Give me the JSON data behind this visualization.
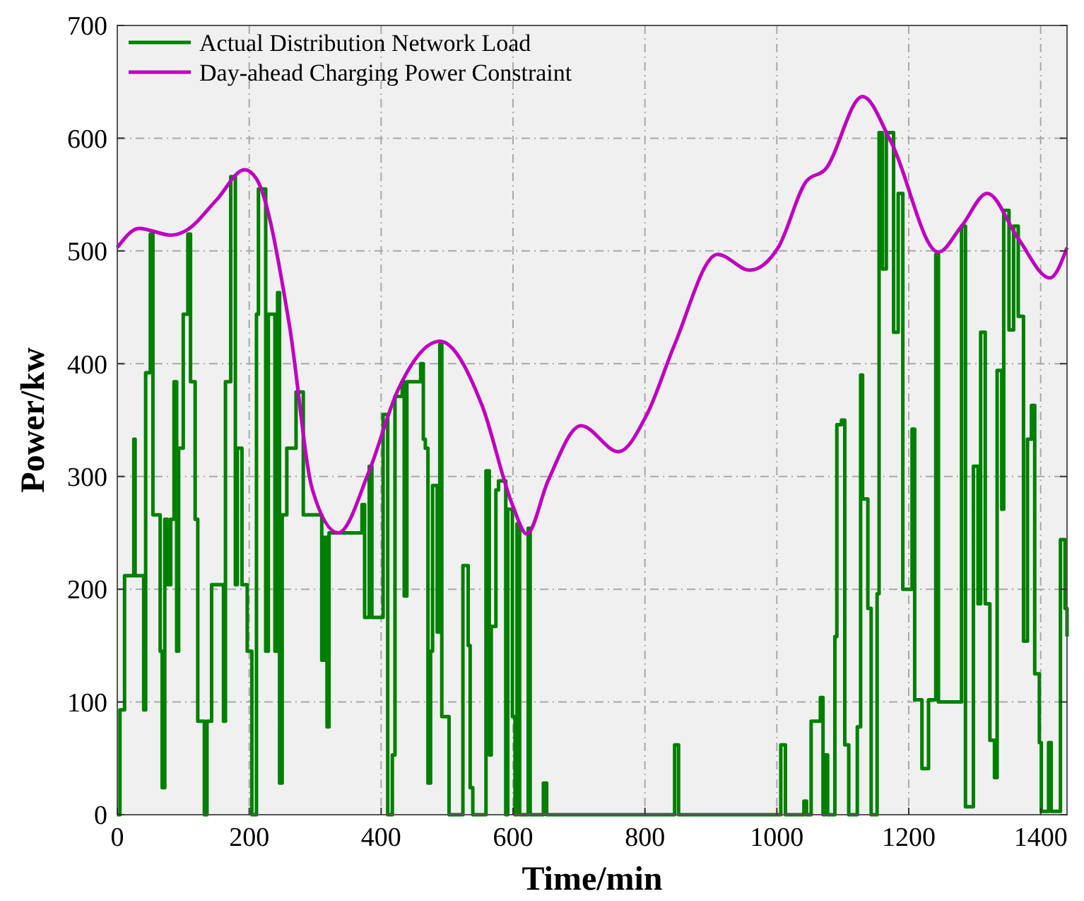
{
  "chart_data": {
    "type": "line",
    "xlabel": "Time/min",
    "ylabel": "Power/kw",
    "xlim": [
      0,
      1440
    ],
    "ylim": [
      0,
      700
    ],
    "xticks": [
      0,
      200,
      400,
      600,
      800,
      1000,
      1200,
      1400
    ],
    "yticks": [
      0,
      100,
      200,
      300,
      400,
      500,
      600,
      700
    ],
    "grid": true,
    "legend": "top left",
    "series": [
      {
        "name": "Actual Distribution Network Load",
        "color": "#008000",
        "type": "step",
        "x": [
          0,
          4,
          11,
          25,
          27,
          40,
          43,
          50,
          54,
          65,
          68,
          72,
          76,
          81,
          86,
          90,
          93,
          100,
          107,
          111,
          118,
          122,
          132,
          136,
          143,
          157,
          161,
          164,
          172,
          179,
          182,
          189,
          197,
          204,
          211,
          214,
          225,
          229,
          239,
          243,
          246,
          250,
          257,
          271,
          282,
          304,
          310,
          314,
          318,
          321,
          371,
          375,
          382,
          386,
          403,
          410,
          417,
          421,
          432,
          435,
          439,
          460,
          464,
          467,
          471,
          475,
          478,
          485,
          489,
          492,
          500,
          503,
          521,
          524,
          532,
          535,
          539,
          557,
          559,
          564,
          567,
          574,
          578,
          589,
          592,
          599,
          603,
          606,
          610,
          623,
          626,
          646,
          651,
          845,
          851,
          1006,
          1013,
          1041,
          1045,
          1052,
          1066,
          1070,
          1073,
          1077,
          1088,
          1091,
          1098,
          1103,
          1109,
          1122,
          1127,
          1130,
          1138,
          1143,
          1152,
          1155,
          1160,
          1166,
          1177,
          1184,
          1191,
          1205,
          1209,
          1220,
          1230,
          1241,
          1245,
          1280,
          1286,
          1294,
          1298,
          1305,
          1309,
          1316,
          1323,
          1330,
          1334,
          1341,
          1344,
          1352,
          1359,
          1366,
          1374,
          1380,
          1386,
          1391,
          1398,
          1401,
          1412,
          1416,
          1426,
          1430,
          1437,
          1440
        ],
        "values": [
          0,
          93,
          212,
          333,
          212,
          93,
          392,
          515,
          266,
          145,
          24,
          262,
          204,
          262,
          384,
          145,
          325,
          444,
          515,
          384,
          262,
          83,
          0,
          83,
          204,
          204,
          83,
          384,
          566,
          204,
          325,
          204,
          145,
          0,
          444,
          555,
          145,
          444,
          145,
          463,
          28,
          266,
          325,
          375,
          266,
          266,
          137,
          246,
          78,
          250,
          275,
          175,
          309,
          175,
          355,
          0,
          53,
          371,
          384,
          194,
          384,
          400,
          333,
          325,
          28,
          145,
          292,
          162,
          417,
          87,
          87,
          0,
          0,
          221,
          150,
          24,
          0,
          0,
          305,
          53,
          167,
          288,
          296,
          0,
          271,
          87,
          0,
          258,
          0,
          254,
          0,
          28,
          0,
          62,
          0,
          62,
          0,
          12,
          0,
          83,
          104,
          0,
          53,
          0,
          158,
          346,
          350,
          62,
          0,
          78,
          390,
          280,
          183,
          0,
          196,
          605,
          484,
          605,
          428,
          551,
          200,
          342,
          102,
          41,
          102,
          497,
          100,
          522,
          7,
          7,
          309,
          187,
          428,
          187,
          66,
          33,
          394,
          271,
          536,
          430,
          522,
          442,
          154,
          333,
          363,
          125,
          64,
          3,
          64,
          3,
          3,
          244,
          183,
          158
        ]
      },
      {
        "name": "Day-ahead Charging Power Constraint",
        "color": "#c000c0",
        "type": "line",
        "x": [
          0,
          33,
          82,
          104,
          150,
          193,
          211,
          261,
          296,
          335,
          382,
          425,
          489,
          553,
          599,
          621,
          653,
          703,
          760,
          803,
          845,
          910,
          959,
          1002,
          1045,
          1073,
          1130,
          1173,
          1245,
          1280,
          1319,
          1366,
          1414,
          1440
        ],
        "values": [
          503,
          520,
          514,
          518,
          545,
          572,
          564,
          434,
          288,
          250,
          305,
          376,
          420,
          363,
          275,
          249,
          296,
          345,
          322,
          355,
          417,
          497,
          483,
          503,
          562,
          572,
          637,
          597,
          499,
          522,
          551,
          511,
          476,
          503
        ]
      }
    ]
  }
}
